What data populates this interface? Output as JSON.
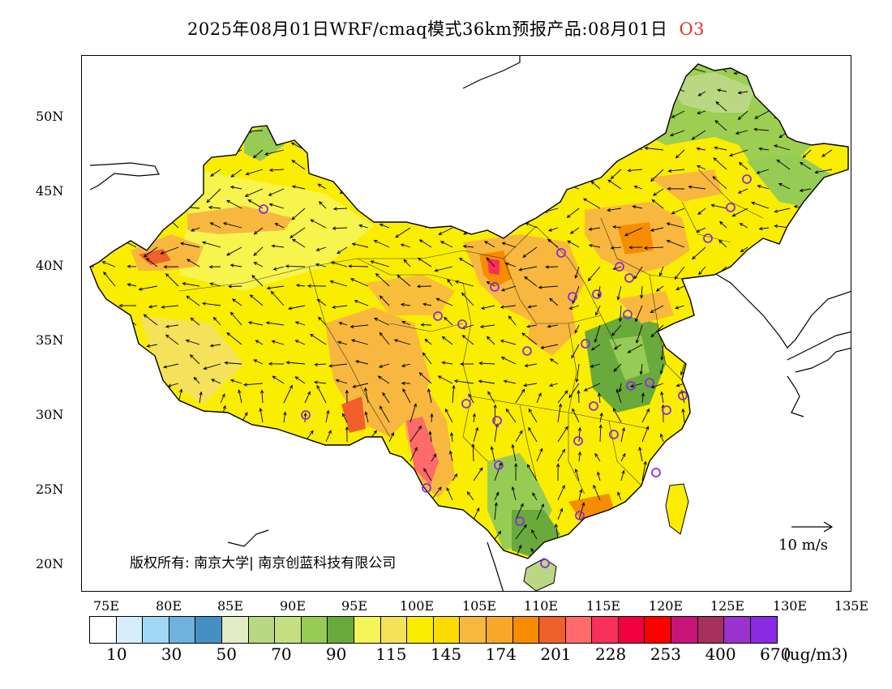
{
  "title": {
    "text": "2025年08月01日WRF/cmaq模式36km预报产品:08月01日",
    "species": "O3",
    "species_color": "#e0332a"
  },
  "map": {
    "lon_range": [
      73,
      135
    ],
    "lat_range": [
      18,
      54
    ],
    "lat_ticks": [
      "50N",
      "45N",
      "40N",
      "35N",
      "30N",
      "25N",
      "20N"
    ],
    "lon_ticks": [
      "75E",
      "80E",
      "85E",
      "90E",
      "95E",
      "100E",
      "105E",
      "110E",
      "115E",
      "120E",
      "125E",
      "130E",
      "135E"
    ],
    "copyright": "版权所有: 南京大学| 南京创蓝科技有限公司",
    "wind_reference": "10 m/s",
    "stations_icon": "circle-marker-icon",
    "station_color": "#8a2be2"
  },
  "colorbar": {
    "colors": [
      "#ffffff",
      "#d6eefa",
      "#a0d8f5",
      "#6fb2e0",
      "#468fc4",
      "#e2ecc4",
      "#bad884",
      "#c4e080",
      "#96cc55",
      "#6aaa3c",
      "#f5f55a",
      "#f5e25a",
      "#fbed00",
      "#fbdb00",
      "#f8b840",
      "#f8a828",
      "#f88c00",
      "#f0602a",
      "#ff6a6a",
      "#f8305a",
      "#f00040",
      "#ff0000",
      "#c81478",
      "#a8305c",
      "#9a32cd",
      "#8a2be2"
    ],
    "labels": [
      "10",
      "30",
      "50",
      "70",
      "90",
      "115",
      "145",
      "174",
      "201",
      "228",
      "253",
      "400",
      "670"
    ],
    "unit": "(ug/m3)"
  }
}
